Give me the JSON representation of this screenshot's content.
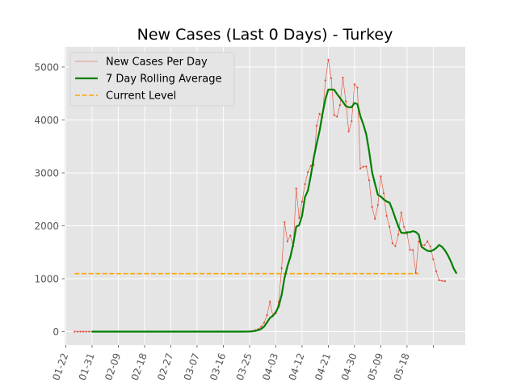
{
  "chart_data": {
    "type": "line",
    "title": "New Cases (Last 0 Days) - Turkey",
    "xlabel": "",
    "ylabel": "",
    "x_tick_labels": [
      "01-22",
      "01-31",
      "02-09",
      "02-18",
      "02-27",
      "03-07",
      "03-16",
      "03-25",
      "04-03",
      "04-12",
      "04-21",
      "04-30",
      "05-09",
      "05-18"
    ],
    "x_start": "01-22",
    "ylim": [
      -250,
      5400
    ],
    "y_ticks": [
      0,
      1000,
      2000,
      3000,
      4000,
      5000
    ],
    "grid": true,
    "legend_position": "top-left",
    "series": [
      {
        "name": "New Cases Per Day",
        "color": "#e24a33",
        "style": "thin-line-with-dots",
        "start_date": "01-25",
        "values": [
          0,
          0,
          0,
          0,
          0,
          0,
          0,
          0,
          0,
          0,
          0,
          0,
          0,
          0,
          0,
          0,
          0,
          0,
          0,
          0,
          0,
          0,
          0,
          0,
          0,
          0,
          0,
          0,
          0,
          0,
          0,
          0,
          0,
          0,
          0,
          0,
          0,
          0,
          0,
          0,
          0,
          0,
          0,
          0,
          0,
          0,
          0,
          0,
          0,
          0,
          0,
          0,
          0,
          0,
          0,
          0,
          0,
          0,
          1,
          0,
          4,
          12,
          29,
          49,
          93,
          168,
          311,
          568,
          293,
          343,
          561,
          1196,
          2069,
          1704,
          1815,
          1610,
          2704,
          2148,
          2456,
          2786,
          3013,
          3135,
          3148,
          3892,
          4117,
          4056,
          4747,
          5138,
          4789,
          4093,
          4062,
          4281,
          4801,
          4353,
          3783,
          3977,
          4674,
          4611,
          3083,
          3116,
          3122,
          2861,
          2357,
          2131,
          2392,
          2936,
          2615,
          2188,
          1983,
          1670,
          1614,
          1832,
          2253,
          1977,
          1848,
          1546,
          1542,
          1114,
          1704,
          1639,
          1635,
          1708,
          1610,
          1368,
          1141,
          972,
          961,
          952
        ]
      },
      {
        "name": "7 Day Rolling Average",
        "color": "#008000",
        "style": "thick-line",
        "start_date": "01-31",
        "values": [
          0,
          0,
          0,
          0,
          0,
          0,
          0,
          0,
          0,
          0,
          0,
          0,
          0,
          0,
          0,
          0,
          0,
          0,
          0,
          0,
          0,
          0,
          0,
          0,
          0,
          0,
          0,
          0,
          0,
          0,
          0,
          0,
          0,
          0,
          0,
          0,
          0,
          0,
          0,
          0,
          0,
          0,
          0,
          0,
          0,
          0,
          0,
          0,
          0,
          0,
          0,
          0,
          0,
          1,
          2,
          7,
          14,
          28,
          52,
          95,
          176,
          260,
          300,
          369,
          477,
          694,
          1018,
          1239,
          1414,
          1664,
          1983,
          2010,
          2189,
          2541,
          2665,
          2945,
          3283,
          3548,
          3791,
          4114,
          4392,
          4575,
          4574,
          4572,
          4490,
          4417,
          4343,
          4264,
          4241,
          4240,
          4321,
          4300,
          4071,
          3919,
          3733,
          3409,
          3017,
          2798,
          2585,
          2552,
          2499,
          2460,
          2438,
          2302,
          2143,
          1990,
          1870,
          1861,
          1879,
          1879,
          1899,
          1882,
          1833,
          1600,
          1563,
          1528,
          1517,
          1541,
          1580,
          1638,
          1602,
          1536,
          1443,
          1331,
          1194,
          1097
        ]
      },
      {
        "name": "Current Level",
        "color": "#ffa500",
        "style": "dashed",
        "constant": 1097,
        "x_range": [
          "01-25",
          "05-22"
        ]
      }
    ]
  }
}
